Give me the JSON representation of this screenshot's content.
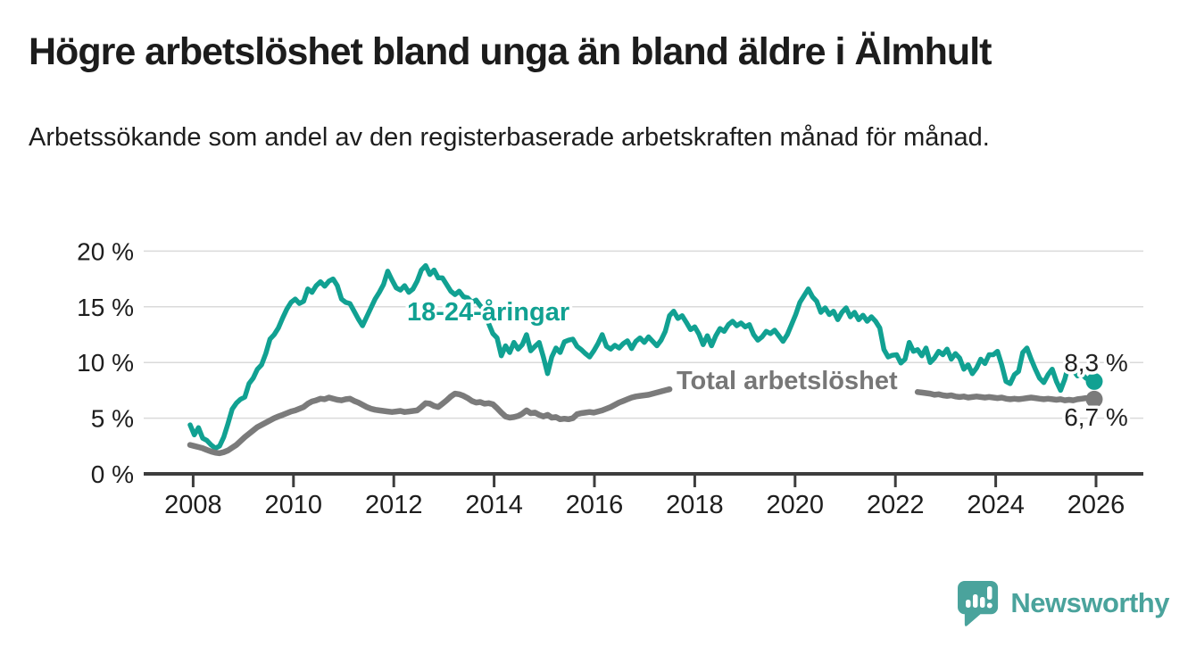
{
  "header": {
    "title": "Högre arbetslöshet bland unga än bland äldre i Älmhult",
    "subtitle": "Arbetssökande som andel av den registerbaserade arbetskraften månad för månad."
  },
  "colors": {
    "young_line": "#11a192",
    "total_line": "#7b7b7b",
    "total_label": "#777777",
    "value_label": "#222222",
    "grid": "#dadada",
    "axis": "#3d3d3d",
    "text": "#1d1d1d",
    "brand_teal": "#4aa39c",
    "background": "#ffffff"
  },
  "chart_data": {
    "type": "line",
    "title": "Högre arbetslöshet bland unga än bland äldre i Älmhult",
    "subtitle": "Arbetssökande som andel av den registerbaserade arbetskraften månad för månad.",
    "x_unit": "month",
    "x_start": "2008-01",
    "x_end": "2025-12",
    "ylim": [
      0,
      21
    ],
    "grid": "horizontal",
    "legend_position": "inline-labels",
    "ytick_values": [
      0,
      5,
      10,
      15,
      20
    ],
    "yticklabels": [
      "0 %",
      "5 %",
      "10 %",
      "15 %",
      "20 %"
    ],
    "xtick_values": [
      2008,
      2010,
      2012,
      2014,
      2016,
      2018,
      2020,
      2022,
      2024,
      2026
    ],
    "xticklabels": [
      "2008",
      "2010",
      "2012",
      "2014",
      "2016",
      "2018",
      "2020",
      "2022",
      "2024",
      "2026"
    ],
    "series": [
      {
        "name": "18-24-åringar",
        "color": "#11a192",
        "end_label": "8,3 %",
        "end_value": 8.3,
        "values": [
          4.4,
          3.5,
          4.15,
          3.2,
          3.0,
          2.6,
          2.3,
          2.5,
          3.3,
          4.5,
          5.8,
          6.35,
          6.7,
          6.9,
          8.1,
          8.6,
          9.4,
          9.8,
          10.8,
          12.1,
          12.5,
          13.1,
          14.0,
          14.8,
          15.4,
          15.7,
          15.3,
          15.5,
          16.6,
          16.3,
          16.9,
          17.25,
          16.85,
          17.3,
          17.5,
          16.9,
          15.7,
          15.4,
          15.3,
          14.6,
          13.9,
          13.3,
          14.1,
          14.9,
          15.7,
          16.3,
          17.0,
          18.2,
          17.4,
          16.7,
          16.5,
          16.9,
          16.3,
          16.6,
          17.3,
          18.3,
          18.7,
          17.9,
          18.3,
          17.6,
          17.6,
          17.0,
          16.4,
          16.1,
          16.4,
          15.9,
          15.8,
          15.4,
          15.6,
          15.1,
          14.7,
          13.5,
          12.6,
          12.2,
          10.6,
          11.5,
          10.9,
          11.8,
          11.2,
          11.6,
          12.5,
          11.05,
          11.45,
          11.8,
          10.5,
          9.0,
          10.5,
          11.3,
          10.9,
          11.85,
          12.0,
          12.1,
          11.45,
          11.15,
          10.8,
          10.5,
          11.05,
          11.7,
          12.5,
          11.45,
          11.2,
          11.55,
          11.3,
          11.7,
          11.95,
          11.25,
          11.9,
          12.2,
          11.8,
          12.3,
          11.9,
          11.5,
          12.0,
          12.8,
          14.2,
          14.6,
          13.95,
          14.2,
          13.6,
          12.95,
          13.2,
          12.55,
          11.6,
          12.4,
          11.5,
          12.4,
          13.05,
          12.8,
          13.4,
          13.7,
          13.3,
          13.55,
          13.2,
          13.4,
          12.5,
          12.0,
          12.3,
          12.8,
          12.6,
          12.9,
          12.4,
          11.9,
          12.5,
          13.4,
          14.3,
          15.4,
          16.0,
          16.6,
          15.9,
          15.5,
          14.5,
          14.9,
          14.3,
          14.6,
          13.85,
          14.5,
          14.9,
          14.1,
          14.5,
          13.85,
          14.25,
          13.7,
          14.1,
          13.7,
          13.1,
          11.15,
          10.5,
          10.65,
          10.7,
          9.95,
          10.3,
          11.8,
          11.0,
          11.15,
          10.6,
          11.3,
          10.0,
          10.4,
          11.0,
          10.7,
          11.2,
          10.3,
          10.8,
          10.4,
          9.4,
          9.8,
          9.0,
          9.5,
          10.3,
          9.9,
          10.7,
          10.7,
          11.0,
          9.8,
          8.3,
          8.1,
          8.9,
          9.2,
          10.9,
          11.3,
          10.3,
          9.4,
          8.6,
          8.2,
          8.9,
          9.4,
          8.3,
          7.5,
          8.5,
          9.9,
          9.3,
          8.8,
          9.0,
          8.6,
          8.4,
          8.3
        ]
      },
      {
        "name": "Total arbetslöshet",
        "color": "#7b7b7b",
        "end_label": "6,7 %",
        "end_value": 6.7,
        "note_hidden_segment": "line not drawn Aug 2017 - May 2022 (covered by series label)",
        "values": [
          2.6,
          2.5,
          2.4,
          2.3,
          2.15,
          2.0,
          1.9,
          1.85,
          1.95,
          2.1,
          2.35,
          2.6,
          2.95,
          3.3,
          3.6,
          3.9,
          4.2,
          4.4,
          4.6,
          4.8,
          5.0,
          5.15,
          5.3,
          5.45,
          5.6,
          5.7,
          5.85,
          6.0,
          6.3,
          6.5,
          6.6,
          6.75,
          6.7,
          6.85,
          6.75,
          6.65,
          6.6,
          6.7,
          6.75,
          6.55,
          6.4,
          6.2,
          6.0,
          5.85,
          5.75,
          5.7,
          5.65,
          5.6,
          5.55,
          5.6,
          5.65,
          5.55,
          5.6,
          5.65,
          5.7,
          6.0,
          6.35,
          6.3,
          6.1,
          6.0,
          6.3,
          6.6,
          6.95,
          7.2,
          7.15,
          7.0,
          6.8,
          6.55,
          6.4,
          6.45,
          6.3,
          6.35,
          6.25,
          5.9,
          5.5,
          5.15,
          5.05,
          5.1,
          5.2,
          5.4,
          5.7,
          5.45,
          5.5,
          5.3,
          5.15,
          5.3,
          5.05,
          5.1,
          4.9,
          4.95,
          4.9,
          5.0,
          5.35,
          5.45,
          5.5,
          5.55,
          5.5,
          5.6,
          5.7,
          5.85,
          6.0,
          6.2,
          6.4,
          6.55,
          6.7,
          6.85,
          6.95,
          7.0,
          7.05,
          7.1,
          7.2,
          7.3,
          7.4,
          7.5,
          7.6,
          null,
          null,
          null,
          null,
          null,
          null,
          null,
          null,
          null,
          null,
          null,
          null,
          null,
          null,
          null,
          null,
          null,
          null,
          null,
          null,
          null,
          null,
          null,
          null,
          null,
          null,
          null,
          null,
          null,
          null,
          null,
          null,
          null,
          null,
          null,
          null,
          null,
          null,
          null,
          null,
          null,
          null,
          null,
          null,
          null,
          null,
          null,
          null,
          null,
          null,
          null,
          null,
          null,
          null,
          null,
          null,
          null,
          null,
          7.35,
          7.3,
          7.25,
          7.2,
          7.1,
          7.15,
          7.05,
          7.0,
          7.05,
          6.95,
          6.9,
          6.95,
          6.85,
          6.9,
          6.95,
          6.9,
          6.85,
          6.9,
          6.85,
          6.8,
          6.85,
          6.75,
          6.7,
          6.75,
          6.7,
          6.75,
          6.8,
          6.85,
          6.8,
          6.75,
          6.7,
          6.75,
          6.7,
          6.65,
          6.7,
          6.6,
          6.65,
          6.6,
          6.7,
          6.75,
          6.8,
          6.75,
          6.7
        ]
      }
    ]
  },
  "footer": {
    "brand": "Newsworthy"
  }
}
